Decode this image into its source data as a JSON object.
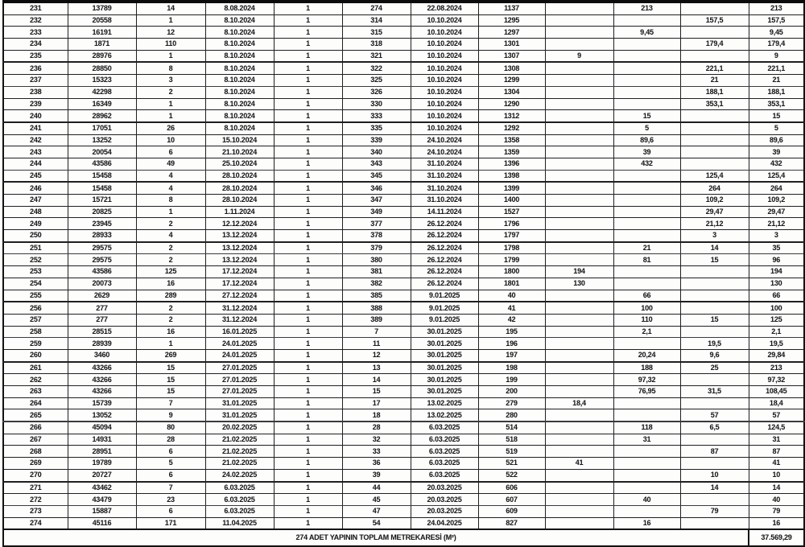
{
  "colors": {
    "ink": "#1b1b1b",
    "paper": "#fdfdfc",
    "border": "#1f1f1f"
  },
  "table": {
    "footer": {
      "label": "274 ADET YAPININ TOPLAM METREKARESİ (M²)",
      "total": "37.569,29"
    },
    "rows": [
      [
        "231",
        "13789",
        "14",
        "8.08.2024",
        "1",
        "274",
        "22.08.2024",
        "1137",
        "",
        "213",
        "",
        "213"
      ],
      [
        "232",
        "20558",
        "1",
        "8.10.2024",
        "1",
        "314",
        "10.10.2024",
        "1295",
        "",
        "",
        "157,5",
        "157,5"
      ],
      [
        "233",
        "16191",
        "12",
        "8.10.2024",
        "1",
        "315",
        "10.10.2024",
        "1297",
        "",
        "9,45",
        "",
        "9,45"
      ],
      [
        "234",
        "1871",
        "110",
        "8.10.2024",
        "1",
        "318",
        "10.10.2024",
        "1301",
        "",
        "",
        "179,4",
        "179,4"
      ],
      [
        "235",
        "28976",
        "1",
        "8.10.2024",
        "1",
        "321",
        "10.10.2024",
        "1307",
        "9",
        "",
        "",
        "9"
      ],
      [
        "236",
        "28850",
        "8",
        "8.10.2024",
        "1",
        "322",
        "10.10.2024",
        "1308",
        "",
        "",
        "221,1",
        "221,1"
      ],
      [
        "237",
        "15323",
        "3",
        "8.10.2024",
        "1",
        "325",
        "10.10.2024",
        "1299",
        "",
        "",
        "21",
        "21"
      ],
      [
        "238",
        "42298",
        "2",
        "8.10.2024",
        "1",
        "326",
        "10.10.2024",
        "1304",
        "",
        "",
        "188,1",
        "188,1"
      ],
      [
        "239",
        "16349",
        "1",
        "8.10.2024",
        "1",
        "330",
        "10.10.2024",
        "1290",
        "",
        "",
        "353,1",
        "353,1"
      ],
      [
        "240",
        "28962",
        "1",
        "8.10.2024",
        "1",
        "333",
        "10.10.2024",
        "1312",
        "",
        "15",
        "",
        "15"
      ],
      [
        "241",
        "17051",
        "26",
        "8.10.2024",
        "1",
        "335",
        "10.10.2024",
        "1292",
        "",
        "5",
        "",
        "5"
      ],
      [
        "242",
        "13252",
        "10",
        "15.10.2024",
        "1",
        "339",
        "24.10.2024",
        "1358",
        "",
        "89,6",
        "",
        "89,6"
      ],
      [
        "243",
        "20054",
        "6",
        "21.10.2024",
        "1",
        "340",
        "24.10.2024",
        "1359",
        "",
        "39",
        "",
        "39"
      ],
      [
        "244",
        "43586",
        "49",
        "25.10.2024",
        "1",
        "343",
        "31.10.2024",
        "1396",
        "",
        "432",
        "",
        "432"
      ],
      [
        "245",
        "15458",
        "4",
        "28.10.2024",
        "1",
        "345",
        "31.10.2024",
        "1398",
        "",
        "",
        "125,4",
        "125,4"
      ],
      [
        "246",
        "15458",
        "4",
        "28.10.2024",
        "1",
        "346",
        "31.10.2024",
        "1399",
        "",
        "",
        "264",
        "264"
      ],
      [
        "247",
        "15721",
        "8",
        "28.10.2024",
        "1",
        "347",
        "31.10.2024",
        "1400",
        "",
        "",
        "109,2",
        "109,2"
      ],
      [
        "248",
        "20825",
        "1",
        "1.11.2024",
        "1",
        "349",
        "14.11.2024",
        "1527",
        "",
        "",
        "29,47",
        "29,47"
      ],
      [
        "249",
        "23945",
        "2",
        "12.12.2024",
        "1",
        "377",
        "26.12.2024",
        "1796",
        "",
        "",
        "21,12",
        "21,12"
      ],
      [
        "250",
        "28933",
        "4",
        "13.12.2024",
        "1",
        "378",
        "26.12.2024",
        "1797",
        "",
        "",
        "3",
        "3"
      ],
      [
        "251",
        "29575",
        "2",
        "13.12.2024",
        "1",
        "379",
        "26.12.2024",
        "1798",
        "",
        "21",
        "14",
        "35"
      ],
      [
        "252",
        "29575",
        "2",
        "13.12.2024",
        "1",
        "380",
        "26.12.2024",
        "1799",
        "",
        "81",
        "15",
        "96"
      ],
      [
        "253",
        "43586",
        "125",
        "17.12.2024",
        "1",
        "381",
        "26.12.2024",
        "1800",
        "194",
        "",
        "",
        "194"
      ],
      [
        "254",
        "20073",
        "16",
        "17.12.2024",
        "1",
        "382",
        "26.12.2024",
        "1801",
        "130",
        "",
        "",
        "130"
      ],
      [
        "255",
        "2629",
        "289",
        "27.12.2024",
        "1",
        "385",
        "9.01.2025",
        "40",
        "",
        "66",
        "",
        "66"
      ],
      [
        "256",
        "277",
        "2",
        "31.12.2024",
        "1",
        "388",
        "9.01.2025",
        "41",
        "",
        "100",
        "",
        "100"
      ],
      [
        "257",
        "277",
        "2",
        "31.12.2024",
        "1",
        "389",
        "9.01.2025",
        "42",
        "",
        "110",
        "15",
        "125"
      ],
      [
        "258",
        "28515",
        "16",
        "16.01.2025",
        "1",
        "7",
        "30.01.2025",
        "195",
        "",
        "2,1",
        "",
        "2,1"
      ],
      [
        "259",
        "28939",
        "1",
        "24.01.2025",
        "1",
        "11",
        "30.01.2025",
        "196",
        "",
        "",
        "19,5",
        "19,5"
      ],
      [
        "260",
        "3460",
        "269",
        "24.01.2025",
        "1",
        "12",
        "30.01.2025",
        "197",
        "",
        "20,24",
        "9,6",
        "29,84"
      ],
      [
        "261",
        "43266",
        "15",
        "27.01.2025",
        "1",
        "13",
        "30.01.2025",
        "198",
        "",
        "188",
        "25",
        "213"
      ],
      [
        "262",
        "43266",
        "15",
        "27.01.2025",
        "1",
        "14",
        "30.01.2025",
        "199",
        "",
        "97,32",
        "",
        "97,32"
      ],
      [
        "263",
        "43266",
        "15",
        "27.01.2025",
        "1",
        "15",
        "30.01.2025",
        "200",
        "",
        "76,95",
        "31,5",
        "108,45"
      ],
      [
        "264",
        "15739",
        "7",
        "31.01.2025",
        "1",
        "17",
        "13.02.2025",
        "279",
        "18,4",
        "",
        "",
        "18,4"
      ],
      [
        "265",
        "13052",
        "9",
        "31.01.2025",
        "1",
        "18",
        "13.02.2025",
        "280",
        "",
        "",
        "57",
        "57"
      ],
      [
        "266",
        "45094",
        "80",
        "20.02.2025",
        "1",
        "28",
        "6.03.2025",
        "514",
        "",
        "118",
        "6,5",
        "124,5"
      ],
      [
        "267",
        "14931",
        "28",
        "21.02.2025",
        "1",
        "32",
        "6.03.2025",
        "518",
        "",
        "31",
        "",
        "31"
      ],
      [
        "268",
        "28951",
        "6",
        "21.02.2025",
        "1",
        "33",
        "6.03.2025",
        "519",
        "",
        "",
        "87",
        "87"
      ],
      [
        "269",
        "19789",
        "5",
        "21.02.2025",
        "1",
        "36",
        "6.03.2025",
        "521",
        "41",
        "",
        "",
        "41"
      ],
      [
        "270",
        "20727",
        "6",
        "24.02.2025",
        "1",
        "39",
        "6.03.2025",
        "522",
        "",
        "",
        "10",
        "10"
      ],
      [
        "271",
        "43462",
        "7",
        "6.03.2025",
        "1",
        "44",
        "20.03.2025",
        "606",
        "",
        "",
        "14",
        "14"
      ],
      [
        "272",
        "43479",
        "23",
        "6.03.2025",
        "1",
        "45",
        "20.03.2025",
        "607",
        "",
        "40",
        "",
        "40"
      ],
      [
        "273",
        "15887",
        "6",
        "6.03.2025",
        "1",
        "47",
        "20.03.2025",
        "609",
        "",
        "",
        "79",
        "79"
      ],
      [
        "274",
        "45116",
        "171",
        "11.04.2025",
        "1",
        "54",
        "24.04.2025",
        "827",
        "",
        "16",
        "",
        "16"
      ]
    ]
  }
}
